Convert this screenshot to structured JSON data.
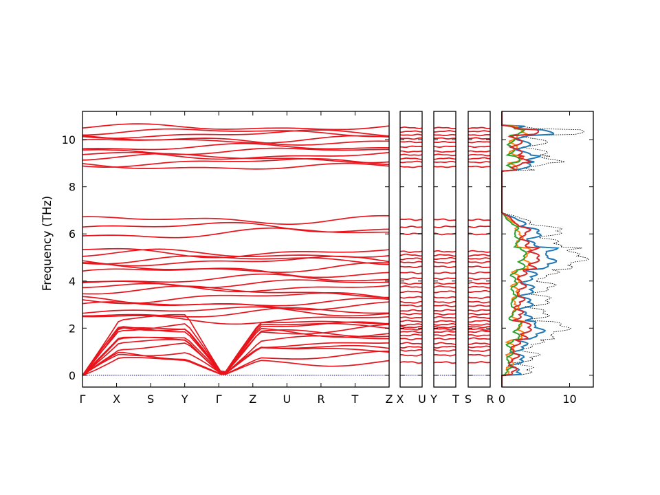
{
  "chart_data": {
    "type": "line",
    "ylabel": "Frequency (THz)",
    "ylim": [
      -0.5,
      11.2
    ],
    "yticks": [
      0,
      2,
      4,
      6,
      8,
      10
    ],
    "panels": [
      {
        "name": "main",
        "labels": [
          "Γ",
          "X",
          "S",
          "Y",
          "Γ",
          "Z",
          "U",
          "R",
          "T",
          "Z"
        ]
      },
      {
        "name": "xu",
        "labels": [
          "X",
          "U"
        ]
      },
      {
        "name": "yt",
        "labels": [
          "Y",
          "T"
        ]
      },
      {
        "name": "sr",
        "labels": [
          "S",
          "R"
        ]
      }
    ],
    "dos": {
      "xticks": [
        0,
        10
      ],
      "xlim": [
        0,
        13.5
      ],
      "series_colors": [
        "#1f77b4",
        "#ff7f0e",
        "#2ca02c",
        "#d62728"
      ],
      "total_color": "#000000"
    },
    "band_color": "#e8141c",
    "zero_line_color": "#0000aa",
    "band_levels": [
      0.55,
      0.85,
      1.05,
      1.2,
      1.35,
      1.55,
      1.7,
      1.85,
      1.95,
      2.05,
      2.15,
      2.3,
      2.45,
      2.6,
      2.75,
      2.95,
      3.1,
      3.3,
      3.55,
      3.75,
      3.9,
      4.1,
      4.35,
      4.6,
      4.8,
      4.95,
      5.1,
      5.25,
      6.0,
      6.3,
      6.6,
      8.85,
      9.05,
      9.2,
      9.35,
      9.5,
      9.7,
      9.9,
      10.05,
      10.2,
      10.35,
      10.5
    ]
  }
}
